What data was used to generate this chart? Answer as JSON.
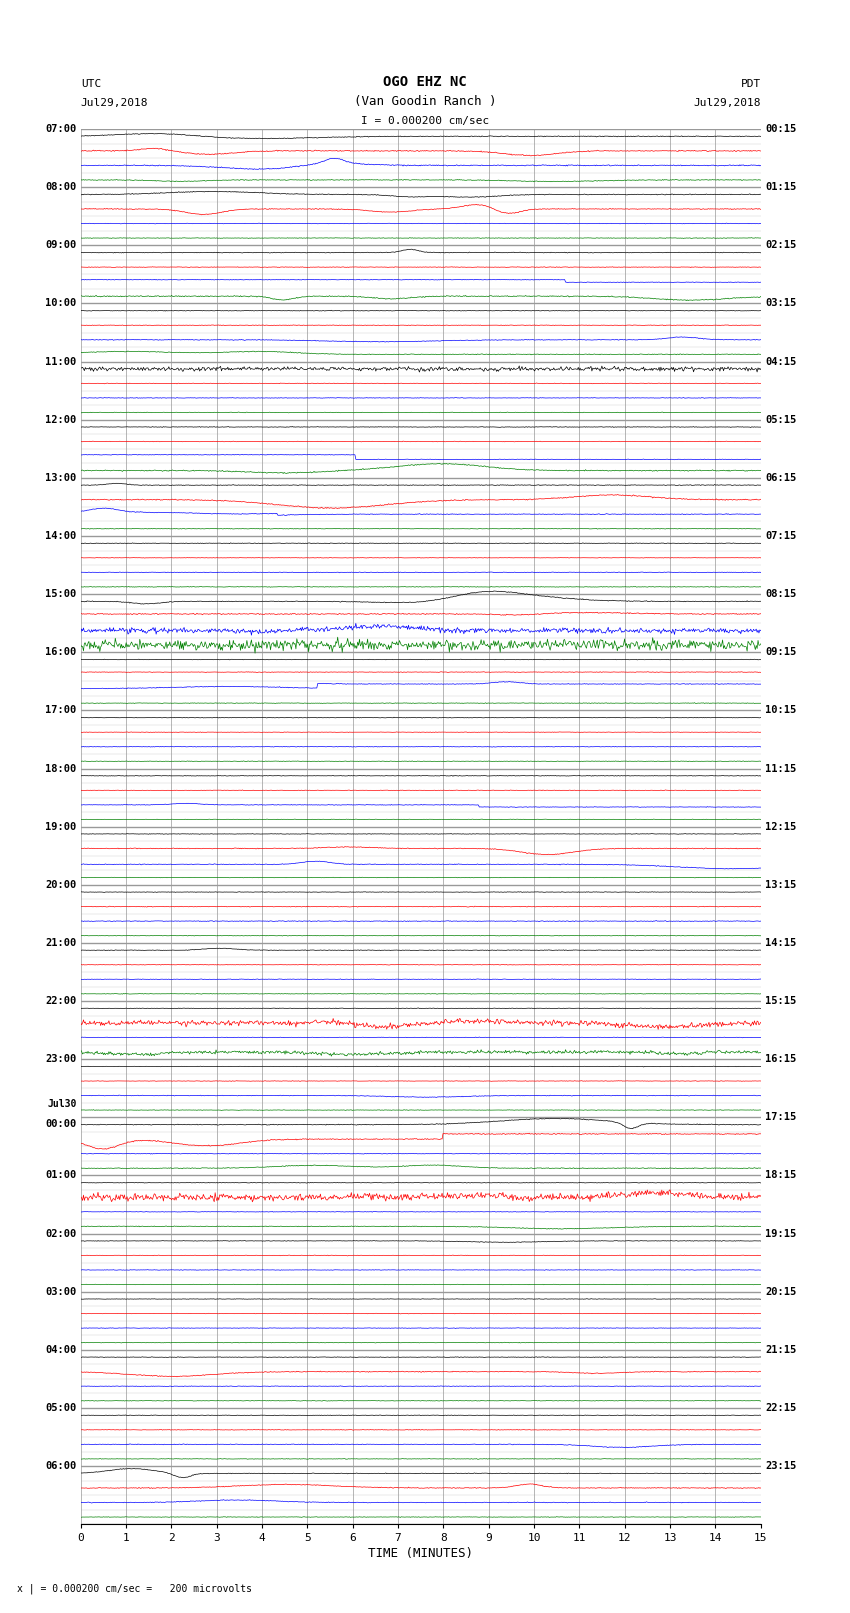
{
  "title_line1": "OGO EHZ NC",
  "title_line2": "(Van Goodin Ranch )",
  "scale_label": "I = 0.000200 cm/sec",
  "footer_label": "x | = 0.000200 cm/sec =   200 microvolts",
  "utc_label": "UTC",
  "utc_date": "Jul29,2018",
  "pdt_label": "PDT",
  "pdt_date": "Jul29,2018",
  "xlabel": "TIME (MINUTES)",
  "xmin": 0,
  "xmax": 15,
  "background_color": "#ffffff",
  "grid_color": "#999999",
  "minor_grid_color": "#cccccc",
  "utc_labels": [
    [
      "07:00",
      0
    ],
    [
      "08:00",
      4
    ],
    [
      "09:00",
      8
    ],
    [
      "10:00",
      12
    ],
    [
      "11:00",
      16
    ],
    [
      "12:00",
      20
    ],
    [
      "13:00",
      24
    ],
    [
      "14:00",
      28
    ],
    [
      "15:00",
      32
    ],
    [
      "16:00",
      36
    ],
    [
      "17:00",
      40
    ],
    [
      "18:00",
      44
    ],
    [
      "19:00",
      48
    ],
    [
      "20:00",
      52
    ],
    [
      "21:00",
      56
    ],
    [
      "22:00",
      60
    ],
    [
      "23:00",
      64
    ],
    [
      "Jul30\n00:00",
      68
    ],
    [
      "01:00",
      72
    ],
    [
      "02:00",
      76
    ],
    [
      "03:00",
      80
    ],
    [
      "04:00",
      84
    ],
    [
      "05:00",
      88
    ],
    [
      "06:00",
      92
    ]
  ],
  "pdt_labels": [
    [
      "00:15",
      0
    ],
    [
      "01:15",
      4
    ],
    [
      "02:15",
      8
    ],
    [
      "03:15",
      12
    ],
    [
      "04:15",
      16
    ],
    [
      "05:15",
      20
    ],
    [
      "06:15",
      24
    ],
    [
      "07:15",
      28
    ],
    [
      "08:15",
      32
    ],
    [
      "09:15",
      36
    ],
    [
      "10:15",
      40
    ],
    [
      "11:15",
      44
    ],
    [
      "12:15",
      48
    ],
    [
      "13:15",
      52
    ],
    [
      "14:15",
      56
    ],
    [
      "15:15",
      60
    ],
    [
      "16:15",
      64
    ],
    [
      "17:15",
      68
    ],
    [
      "18:15",
      72
    ],
    [
      "19:15",
      76
    ],
    [
      "20:15",
      80
    ],
    [
      "21:15",
      84
    ],
    [
      "22:15",
      88
    ],
    [
      "23:15",
      92
    ]
  ],
  "NROWS": 96,
  "traces_per_hour": 4,
  "trace_colors_cycle": [
    "black",
    "red",
    "blue",
    "green"
  ]
}
